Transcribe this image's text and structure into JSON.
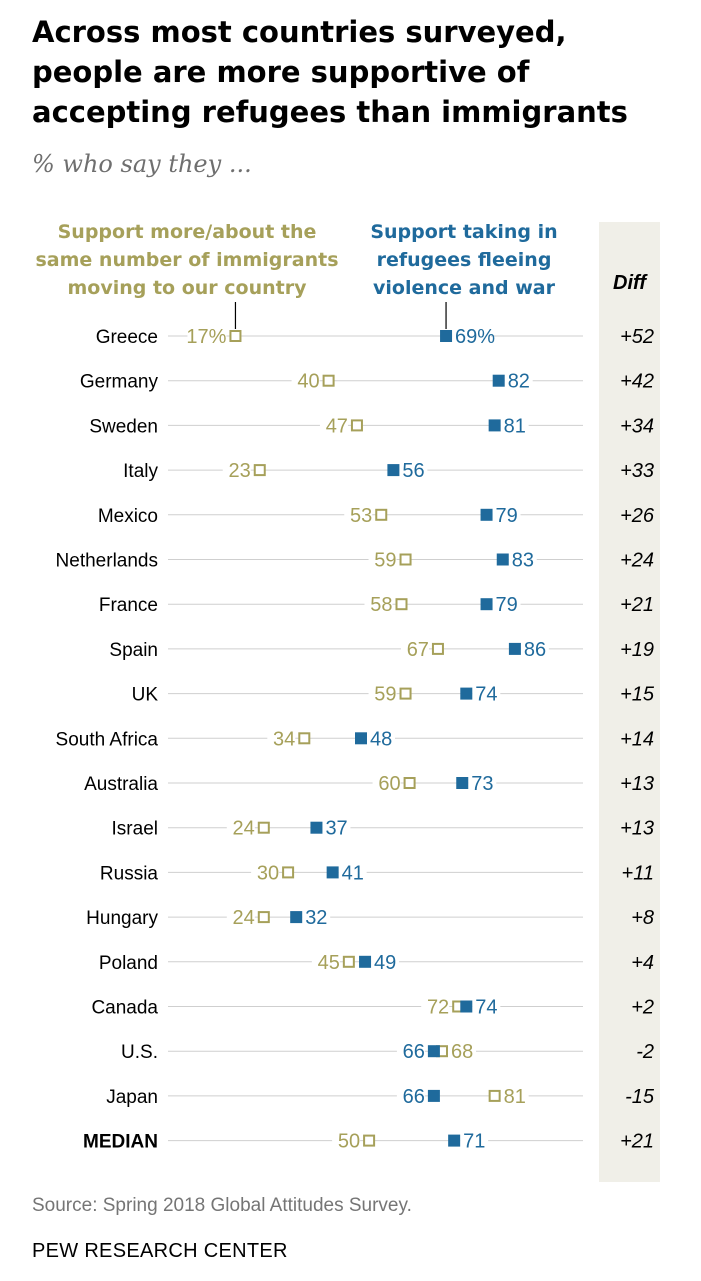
{
  "title": "Across most countries surveyed, people are more supportive of accepting refugees than immigrants",
  "subtitle": "% who say they ...",
  "legend": {
    "immigrants": "Support more/about the same number of immigrants moving to our country",
    "refugees": "Support taking in refugees fleeing violence and war",
    "diff_header": "Diff"
  },
  "colors": {
    "immigrants": "#a6a05a",
    "refugees": "#1f6a9c",
    "diff_band": "#f0efe8",
    "gridline": "#cfcfcf"
  },
  "source": "Source: Spring 2018 Global Attitudes Survey.",
  "org": "PEW RESEARCH CENTER",
  "chart_data": {
    "type": "dot",
    "title": "Across most countries surveyed, people are more supportive of accepting refugees than immigrants",
    "subtitle": "% who say they ...",
    "xlim": [
      0,
      100
    ],
    "categories": [
      "Greece",
      "Germany",
      "Sweden",
      "Italy",
      "Mexico",
      "Netherlands",
      "France",
      "Spain",
      "UK",
      "South Africa",
      "Australia",
      "Israel",
      "Russia",
      "Hungary",
      "Poland",
      "Canada",
      "U.S.",
      "Japan",
      "MEDIAN"
    ],
    "series": [
      {
        "name": "Support more/about the same number of immigrants moving to our country",
        "marker": "hollow-square",
        "values": [
          17,
          40,
          47,
          23,
          53,
          59,
          58,
          67,
          59,
          34,
          60,
          24,
          30,
          24,
          45,
          72,
          68,
          81,
          50
        ],
        "labels": [
          "17%",
          "40",
          "47",
          "23",
          "53",
          "59",
          "58",
          "67",
          "59",
          "34",
          "60",
          "24",
          "30",
          "24",
          "45",
          "72",
          "68",
          "81",
          "50"
        ]
      },
      {
        "name": "Support taking in refugees fleeing violence and war",
        "marker": "filled-square",
        "values": [
          69,
          82,
          81,
          56,
          79,
          83,
          79,
          86,
          74,
          48,
          73,
          37,
          41,
          32,
          49,
          74,
          66,
          66,
          71
        ],
        "labels": [
          "69%",
          "82",
          "81",
          "56",
          "79",
          "83",
          "79",
          "86",
          "74",
          "48",
          "73",
          "37",
          "41",
          "32",
          "49",
          "74",
          "66",
          "66",
          "71"
        ]
      }
    ],
    "diff": [
      "+52",
      "+42",
      "+34",
      "+33",
      "+26",
      "+24",
      "+21",
      "+19",
      "+15",
      "+14",
      "+13",
      "+13",
      "+11",
      "+8",
      "+4",
      "+2",
      "-2",
      "-15",
      "+21"
    ]
  }
}
